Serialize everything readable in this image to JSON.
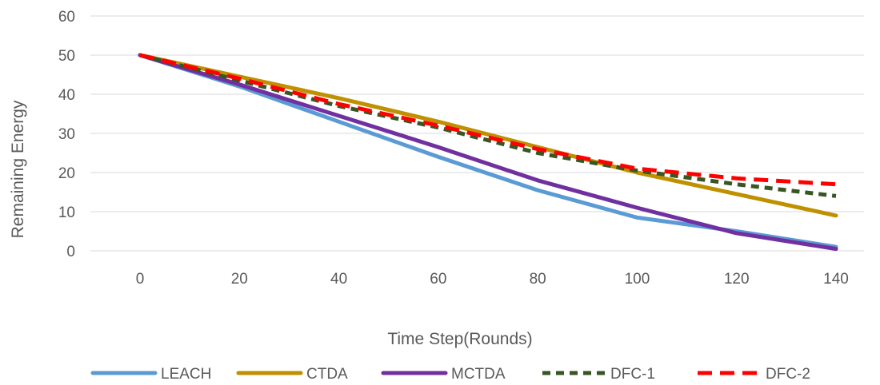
{
  "chart_data": {
    "type": "line",
    "xlabel": "Time Step(Rounds)",
    "ylabel": "Remaining Energy",
    "x": [
      0,
      20,
      40,
      60,
      80,
      100,
      120,
      140
    ],
    "xlim": [
      0,
      140
    ],
    "ylim": [
      0,
      60
    ],
    "yticks": [
      0,
      10,
      20,
      30,
      40,
      50,
      60
    ],
    "xticks": [
      0,
      20,
      40,
      60,
      80,
      100,
      120,
      140
    ],
    "grid": "horizontal",
    "legend_position": "bottom",
    "series": [
      {
        "name": "LEACH",
        "color": "#5b9bd5",
        "style": "solid",
        "values": [
          50,
          42,
          33,
          24,
          15.5,
          8.5,
          5,
          1
        ]
      },
      {
        "name": "CTDA",
        "color": "#bf9000",
        "style": "solid",
        "values": [
          50,
          44.5,
          39,
          33,
          26.5,
          20,
          14.5,
          9
        ]
      },
      {
        "name": "MCTDA",
        "color": "#7030a0",
        "style": "solid",
        "values": [
          50,
          42.5,
          34.5,
          26.5,
          18,
          11,
          4.5,
          0.5
        ]
      },
      {
        "name": "DFC-1",
        "color": "#375623",
        "style": "dotted",
        "values": [
          50,
          43.5,
          37,
          31.5,
          25,
          20.5,
          17,
          14
        ]
      },
      {
        "name": "DFC-2",
        "color": "#ff0000",
        "style": "dashed",
        "values": [
          50,
          44,
          37.5,
          32,
          26,
          21,
          18.5,
          17
        ]
      }
    ]
  }
}
